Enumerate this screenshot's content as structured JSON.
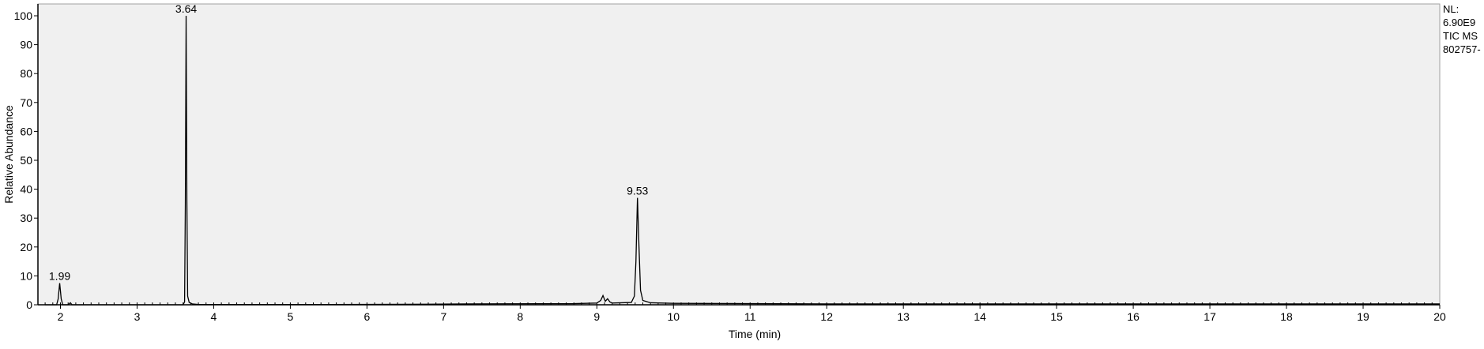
{
  "side_info": {
    "nl_label": "NL:",
    "nl_value": "6.90E9",
    "trace": "TIC  MS",
    "file": "802757-"
  },
  "colors": {
    "plot_bg": "#f0f0f0",
    "trace": "#000000",
    "axis": "#000000",
    "border": "#a0a0a0"
  },
  "chart_data": {
    "type": "line",
    "title": "",
    "xlabel": "Time (min)",
    "ylabel": "Relative Abundance",
    "xlim": [
      1.8,
      20.0
    ],
    "ylim": [
      0,
      100
    ],
    "x_ticks": [
      2,
      3,
      4,
      5,
      6,
      7,
      8,
      9,
      10,
      11,
      12,
      13,
      14,
      15,
      16,
      17,
      18,
      19,
      20
    ],
    "y_ticks": [
      0,
      10,
      20,
      30,
      40,
      50,
      60,
      70,
      80,
      90,
      100
    ],
    "grid": false,
    "legend": "none",
    "peak_labels": [
      {
        "x": 1.99,
        "y": 7.5,
        "label": "1.99"
      },
      {
        "x": 3.64,
        "y": 100,
        "label": "3.64"
      },
      {
        "x": 9.53,
        "y": 37,
        "label": "9.53"
      }
    ],
    "series": [
      {
        "x": [
          1.8,
          1.95,
          1.97,
          1.99,
          2.01,
          2.03,
          2.1,
          2.13,
          2.15,
          2.2,
          3.55,
          3.6,
          3.62,
          3.63,
          3.64,
          3.65,
          3.66,
          3.68,
          3.72,
          3.8,
          5.5,
          6.8,
          7.3,
          8.7,
          9.0,
          9.05,
          9.08,
          9.11,
          9.14,
          9.17,
          9.2,
          9.45,
          9.49,
          9.51,
          9.53,
          9.55,
          9.57,
          9.6,
          9.7,
          10.0,
          12.0,
          15.0,
          18.0,
          20.0
        ],
        "y": [
          0,
          0,
          2,
          7.5,
          2,
          0,
          0,
          0.7,
          0,
          0,
          0,
          0,
          1,
          35,
          100,
          36,
          3,
          0.8,
          0.3,
          0.1,
          0.1,
          0.2,
          0.3,
          0.4,
          0.6,
          1.5,
          3.2,
          1.2,
          2.1,
          1.0,
          0.6,
          0.8,
          3,
          15,
          37,
          20,
          5,
          1.5,
          0.7,
          0.5,
          0.3,
          0.3,
          0.3,
          0.3
        ]
      }
    ]
  }
}
